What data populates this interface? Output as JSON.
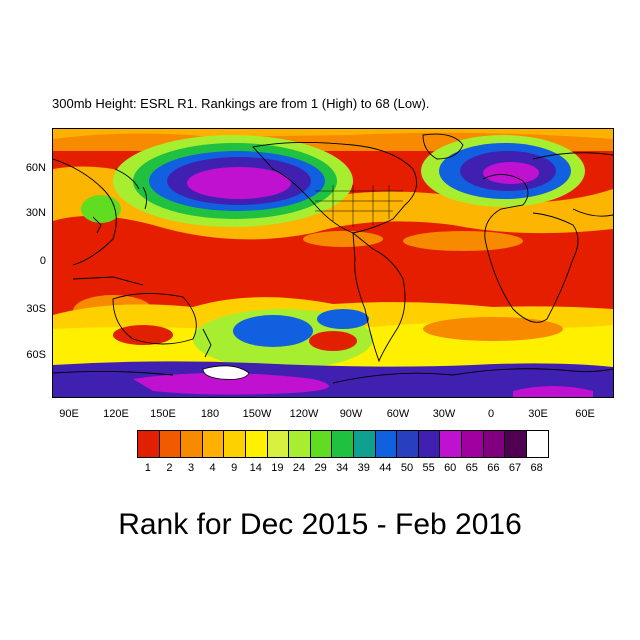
{
  "title": "300mb Height: ESRL R1. Rankings are from 1 (High) to 68 (Low).",
  "caption": "Rank for Dec 2015 - Feb 2016",
  "map": {
    "lat_labels": [
      "60N",
      "30N",
      "0",
      "30S",
      "60S"
    ],
    "lon_labels": [
      "90E",
      "120E",
      "150E",
      "180",
      "150W",
      "120W",
      "90W",
      "60W",
      "30W",
      "0",
      "30E",
      "60E"
    ]
  },
  "legend": {
    "labels": [
      "1",
      "2",
      "3",
      "4",
      "9",
      "14",
      "19",
      "24",
      "29",
      "34",
      "39",
      "44",
      "50",
      "55",
      "60",
      "65",
      "66",
      "67",
      "68"
    ],
    "colors": [
      "#e02000",
      "#f25a00",
      "#f88a00",
      "#ffb000",
      "#ffd000",
      "#fff000",
      "#d8f040",
      "#a8ee30",
      "#60dd20",
      "#20c040",
      "#10a090",
      "#1060e0",
      "#2840c0",
      "#4020b0",
      "#c010d0",
      "#a000a0",
      "#800080",
      "#500050",
      "#ffffff"
    ]
  }
}
